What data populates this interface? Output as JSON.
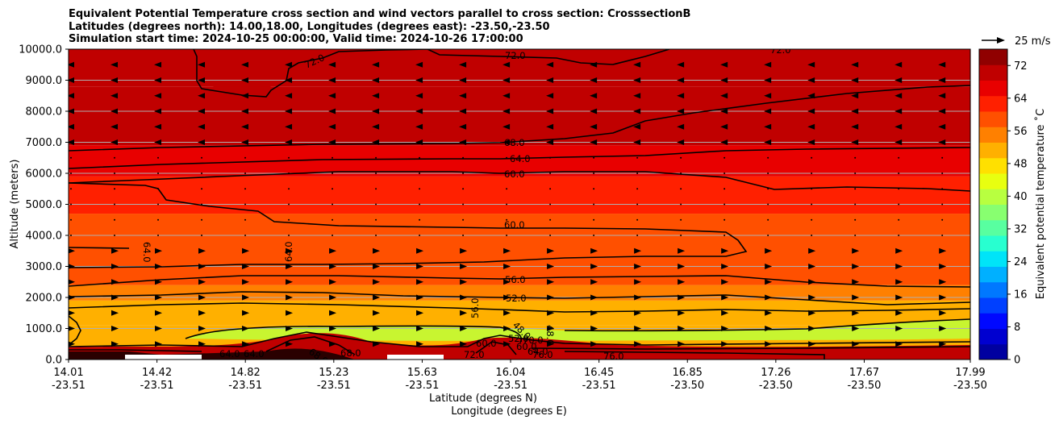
{
  "chart_data": {
    "type": "heatmap",
    "title_lines": [
      "Equivalent Potential Temperature cross section and wind vectors parallel to cross section: CrosssectionB",
      "Latitudes (degrees north): 14.00,18.00, Longitudes (degrees east): -23.50,-23.50",
      "Simulation start time: 2024-10-25 00:00:00, Valid time: 2024-10-26 17:00:00"
    ],
    "ylabel": "Altitude (meters)",
    "xlabel_lat": "Latitude (degrees N)",
    "xlabel_lon": "Longitude (degrees E)",
    "ylim": [
      0,
      10000
    ],
    "yticks": [
      "0.0",
      "1000.0",
      "2000.0",
      "3000.0",
      "4000.0",
      "5000.0",
      "6000.0",
      "7000.0",
      "8000.0",
      "9000.0",
      "10000.0"
    ],
    "xticks_lat": [
      "14.01",
      "14.42",
      "14.82",
      "15.23",
      "15.63",
      "16.04",
      "16.45",
      "16.85",
      "17.26",
      "17.67",
      "17.99"
    ],
    "xticks_lon": [
      "-23.51",
      "-23.51",
      "-23.51",
      "-23.51",
      "-23.51",
      "-23.51",
      "-23.51",
      "-23.50",
      "-23.50",
      "-23.50",
      "-23.50"
    ],
    "grid": "horizontal",
    "colorbar": {
      "label": "Equivalent potential temperature ˚C",
      "ticks": [
        "0",
        "8",
        "16",
        "24",
        "32",
        "40",
        "48",
        "56",
        "64",
        "72"
      ],
      "range": [
        0,
        76
      ],
      "colors": [
        "#0000a0",
        "#0000d0",
        "#0008ff",
        "#0040ff",
        "#0078ff",
        "#00b0ff",
        "#00e4f8",
        "#28ffd0",
        "#58ffa0",
        "#88ff70",
        "#b8ff40",
        "#e8ff10",
        "#ffe000",
        "#ffb000",
        "#ff8000",
        "#ff5000",
        "#ff2000",
        "#e80000",
        "#c00000",
        "#900000"
      ]
    },
    "wind_key": {
      "label": "25 m/s"
    },
    "contour_labels": [
      "72.0",
      "72.0",
      "72.0",
      "68.0",
      "64.0",
      "60.0",
      "60.0",
      "64.0",
      "64.0",
      "56.0",
      "52.0",
      "48.0",
      "48.0",
      "52.0",
      "56.0",
      "60.0",
      "64.0",
      "68.0",
      "72.0",
      "76.0",
      "76.0",
      "60.0",
      "64.0",
      "64.0",
      "68.0",
      "70.0"
    ],
    "layers": [
      {
        "from": 0,
        "to": 400,
        "value": 72
      },
      {
        "from": 400,
        "to": 1100,
        "value": 50
      },
      {
        "from": 1100,
        "to": 1900,
        "value": 53
      },
      {
        "from": 1900,
        "to": 2400,
        "value": 56
      },
      {
        "from": 2400,
        "to": 4700,
        "value": 60
      },
      {
        "from": 4700,
        "to": 5900,
        "value": 62
      },
      {
        "from": 5900,
        "to": 6900,
        "value": 66
      },
      {
        "from": 6900,
        "to": 8800,
        "value": 70
      },
      {
        "from": 8800,
        "to": 10000,
        "value": 72
      }
    ],
    "wind_rows": [
      {
        "altitude": 9500,
        "direction": "left"
      },
      {
        "altitude": 9000,
        "direction": "left"
      },
      {
        "altitude": 8500,
        "direction": "left"
      },
      {
        "altitude": 8000,
        "direction": "left"
      },
      {
        "altitude": 7500,
        "direction": "left"
      },
      {
        "altitude": 7000,
        "direction": "left"
      },
      {
        "altitude": 3500,
        "direction": "right"
      },
      {
        "altitude": 3000,
        "direction": "right"
      },
      {
        "altitude": 2500,
        "direction": "right"
      },
      {
        "altitude": 2000,
        "direction": "right"
      },
      {
        "altitude": 1500,
        "direction": "right"
      },
      {
        "altitude": 1000,
        "direction": "right"
      },
      {
        "altitude": 500,
        "direction": "right"
      }
    ]
  }
}
